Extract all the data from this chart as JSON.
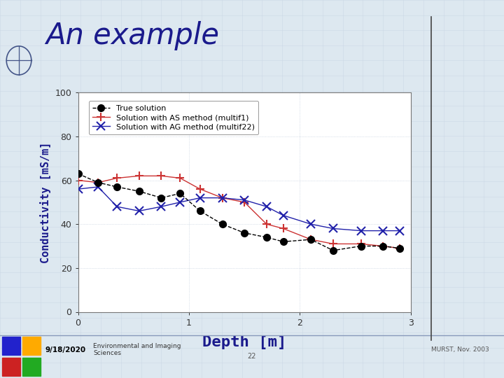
{
  "title": "An example",
  "xlabel": "Depth [m]",
  "ylabel": "Conductivity [mS/m]",
  "xlim": [
    0,
    3
  ],
  "ylim": [
    0,
    100
  ],
  "xticks": [
    0,
    1,
    2,
    3
  ],
  "yticks": [
    0,
    20,
    40,
    60,
    80,
    100
  ],
  "bg_color": "#dde8f0",
  "plot_bg": "#ffffff",
  "footer_left": "9/18/2020",
  "footer_center": "Environmental and Imaging\nSciences",
  "footer_page": "22",
  "footer_right": "MURST, Nov. 2003",
  "true_solution_x": [
    0.0,
    0.18,
    0.35,
    0.55,
    0.75,
    0.92,
    1.1,
    1.3,
    1.5,
    1.7,
    1.85,
    2.1,
    2.3,
    2.55,
    2.75,
    2.9
  ],
  "true_solution_y": [
    63,
    59,
    57,
    55,
    52,
    54,
    46,
    40,
    36,
    34,
    32,
    33,
    28,
    30,
    30,
    29
  ],
  "as_method_x": [
    0.0,
    0.18,
    0.35,
    0.55,
    0.75,
    0.92,
    1.1,
    1.3,
    1.5,
    1.7,
    1.85,
    2.1,
    2.3,
    2.55,
    2.75,
    2.9
  ],
  "as_method_y": [
    60,
    59,
    61,
    62,
    62,
    61,
    56,
    52,
    50,
    40,
    38,
    33,
    31,
    31,
    30,
    29
  ],
  "ag_method_x": [
    0.0,
    0.18,
    0.35,
    0.55,
    0.75,
    0.92,
    1.1,
    1.3,
    1.5,
    1.7,
    1.85,
    2.1,
    2.3,
    2.55,
    2.75,
    2.9
  ],
  "ag_method_y": [
    56,
    57,
    48,
    46,
    48,
    50,
    52,
    52,
    51,
    48,
    44,
    40,
    38,
    37,
    37,
    37
  ],
  "true_color": "#000000",
  "as_color": "#cc3333",
  "ag_color": "#2222aa",
  "legend_true": "True solution",
  "legend_as": "Solution with AS method (multif1)",
  "legend_ag": "Solution with AG method (multif22)",
  "title_color": "#1a1a8c",
  "title_fontsize": 30,
  "axis_label_color": "#1a1a8c",
  "xlabel_fontsize": 16,
  "ylabel_fontsize": 11,
  "tick_fontsize": 9,
  "legend_fontsize": 8,
  "vline_x_fig": 0.855,
  "footer_bg": "#c8d8e8",
  "grid_color": "#c0cce0",
  "grid_major_color": "#c0cce0"
}
